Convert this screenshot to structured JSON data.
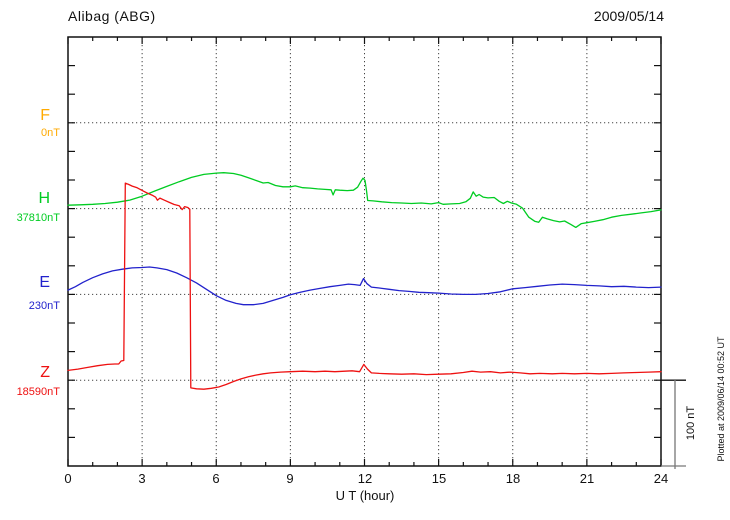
{
  "header": {
    "station": "Alibag (ABG)",
    "date": "2009/05/14"
  },
  "axes": {
    "x": {
      "label": "U T (hour)",
      "ticks": [
        "0",
        "3",
        "6",
        "9",
        "12",
        "15",
        "18",
        "21",
        "24"
      ]
    },
    "scale_bar": {
      "label": "100 nT"
    }
  },
  "footer_note": "Plotted at 2009/06/14 00:52 UT",
  "components": [
    {
      "id": "F",
      "label": "F",
      "baseline_label": "0nT",
      "color": "#FFAA00"
    },
    {
      "id": "H",
      "label": "H",
      "baseline_label": "37810nT",
      "color": "#00CC22"
    },
    {
      "id": "E",
      "label": "E",
      "baseline_label": "230nT",
      "color": "#2222CC"
    },
    {
      "id": "Z",
      "label": "Z",
      "baseline_label": "18590nT",
      "color": "#EE1111"
    }
  ],
  "chart_data": {
    "type": "line",
    "title": "Alibag (ABG) magnetogram",
    "subtitle": "2009/05/14",
    "xlabel": "U T (hour)",
    "x_range": [
      0,
      24
    ],
    "x_tick_interval_hours": 3,
    "grid": "dotted",
    "scale_nT_per_division": 100,
    "series": [
      {
        "name": "F",
        "base_value_nT": 0,
        "color": "#FFAA00",
        "points": []
      },
      {
        "name": "H",
        "base_value_nT": 37810,
        "color": "#00CC22",
        "points": [
          [
            0,
            4
          ],
          [
            0.5,
            4.5
          ],
          [
            1,
            5
          ],
          [
            1.5,
            6
          ],
          [
            2,
            7.5
          ],
          [
            2.5,
            10
          ],
          [
            3,
            14.5
          ],
          [
            3.5,
            20.5
          ],
          [
            4,
            26
          ],
          [
            4.5,
            31.5
          ],
          [
            5,
            36.5
          ],
          [
            5.5,
            40
          ],
          [
            6,
            41.5
          ],
          [
            6.3,
            42
          ],
          [
            6.7,
            41
          ],
          [
            7,
            39
          ],
          [
            7.3,
            36
          ],
          [
            7.6,
            33
          ],
          [
            7.9,
            30
          ],
          [
            8.1,
            30.5
          ],
          [
            8.4,
            27
          ],
          [
            8.7,
            25.5
          ],
          [
            9,
            25.5
          ],
          [
            9.2,
            26.5
          ],
          [
            9.5,
            24.5
          ],
          [
            9.8,
            24
          ],
          [
            10.1,
            23
          ],
          [
            10.4,
            22.5
          ],
          [
            10.65,
            22
          ],
          [
            10.73,
            16
          ],
          [
            10.82,
            22
          ],
          [
            11,
            21.5
          ],
          [
            11.3,
            21
          ],
          [
            11.55,
            21.5
          ],
          [
            11.72,
            25
          ],
          [
            11.86,
            32
          ],
          [
            11.94,
            35.5
          ],
          [
            12.02,
            33
          ],
          [
            12.08,
            21
          ],
          [
            12.13,
            9.5
          ],
          [
            12.35,
            9
          ],
          [
            12.7,
            8
          ],
          [
            13.1,
            7
          ],
          [
            13.5,
            6.5
          ],
          [
            13.9,
            6
          ],
          [
            14.3,
            6.5
          ],
          [
            14.7,
            5.5
          ],
          [
            15,
            7
          ],
          [
            15.18,
            5
          ],
          [
            15.5,
            5.5
          ],
          [
            15.85,
            6
          ],
          [
            16.1,
            8
          ],
          [
            16.28,
            12
          ],
          [
            16.4,
            19.5
          ],
          [
            16.52,
            14.5
          ],
          [
            16.64,
            16.5
          ],
          [
            16.8,
            13.5
          ],
          [
            17,
            12.5
          ],
          [
            17.25,
            13
          ],
          [
            17.45,
            8.5
          ],
          [
            17.62,
            6
          ],
          [
            17.78,
            8.5
          ],
          [
            17.95,
            6.5
          ],
          [
            18.15,
            5
          ],
          [
            18.4,
            0.5
          ],
          [
            18.65,
            -10
          ],
          [
            18.9,
            -15
          ],
          [
            19.05,
            -16
          ],
          [
            19.2,
            -10
          ],
          [
            19.4,
            -12
          ],
          [
            19.65,
            -14
          ],
          [
            19.9,
            -15.5
          ],
          [
            20.1,
            -14.5
          ],
          [
            20.35,
            -18.5
          ],
          [
            20.55,
            -22
          ],
          [
            20.78,
            -17.5
          ],
          [
            21,
            -16.5
          ],
          [
            21.3,
            -15
          ],
          [
            21.65,
            -13
          ],
          [
            22,
            -10
          ],
          [
            22.4,
            -8
          ],
          [
            22.8,
            -6.5
          ],
          [
            23.2,
            -5
          ],
          [
            23.6,
            -3.5
          ],
          [
            24,
            -1.5
          ]
        ]
      },
      {
        "name": "E",
        "base_value_nT": 230,
        "color": "#2222CC",
        "points": [
          [
            0,
            5
          ],
          [
            0.3,
            9
          ],
          [
            0.6,
            14
          ],
          [
            1,
            19.5
          ],
          [
            1.4,
            24
          ],
          [
            1.8,
            27.5
          ],
          [
            2.2,
            29.5
          ],
          [
            2.6,
            31
          ],
          [
            3,
            31.5
          ],
          [
            3.3,
            32
          ],
          [
            3.6,
            31
          ],
          [
            4,
            29
          ],
          [
            4.4,
            25
          ],
          [
            4.8,
            19.5
          ],
          [
            5.2,
            13.5
          ],
          [
            5.6,
            6
          ],
          [
            6,
            -1.5
          ],
          [
            6.4,
            -7
          ],
          [
            6.8,
            -10.5
          ],
          [
            7.1,
            -12
          ],
          [
            7.5,
            -12
          ],
          [
            7.9,
            -10.5
          ],
          [
            8.3,
            -7
          ],
          [
            8.7,
            -3.5
          ],
          [
            9,
            -0.5
          ],
          [
            9.4,
            2.5
          ],
          [
            9.8,
            5
          ],
          [
            10.2,
            7
          ],
          [
            10.6,
            9
          ],
          [
            11,
            10.5
          ],
          [
            11.35,
            12
          ],
          [
            11.6,
            11.5
          ],
          [
            11.82,
            10.5
          ],
          [
            11.96,
            18.5
          ],
          [
            12.1,
            12.5
          ],
          [
            12.28,
            8.5
          ],
          [
            12.6,
            7.5
          ],
          [
            13,
            6
          ],
          [
            13.4,
            4.5
          ],
          [
            13.8,
            3.5
          ],
          [
            14.2,
            2.5
          ],
          [
            14.6,
            2
          ],
          [
            15,
            1.5
          ],
          [
            15.5,
            0.5
          ],
          [
            16,
            0
          ],
          [
            16.5,
            0
          ],
          [
            17,
            1
          ],
          [
            17.5,
            3
          ],
          [
            18,
            6.5
          ],
          [
            18.5,
            8
          ],
          [
            19,
            9.5
          ],
          [
            19.5,
            11
          ],
          [
            20,
            12
          ],
          [
            20.5,
            11.5
          ],
          [
            21,
            10.5
          ],
          [
            21.5,
            10
          ],
          [
            22,
            9
          ],
          [
            22.5,
            9.5
          ],
          [
            23,
            8.5
          ],
          [
            23.5,
            8
          ],
          [
            24,
            8.5
          ]
        ]
      },
      {
        "name": "Z",
        "base_value_nT": 18590,
        "color": "#EE1111",
        "points": [
          [
            0,
            11.5
          ],
          [
            0.4,
            13
          ],
          [
            0.8,
            15
          ],
          [
            1.2,
            17
          ],
          [
            1.6,
            18.5
          ],
          [
            1.9,
            19
          ],
          [
            2.05,
            19
          ],
          [
            2.15,
            22.5
          ],
          [
            2.26,
            23
          ],
          [
            2.32,
            230.5
          ],
          [
            2.45,
            229
          ],
          [
            2.6,
            227
          ],
          [
            2.8,
            225
          ],
          [
            3,
            222
          ],
          [
            3.2,
            219
          ],
          [
            3.4,
            216.5
          ],
          [
            3.55,
            214
          ],
          [
            3.62,
            210.5
          ],
          [
            3.72,
            213
          ],
          [
            3.9,
            210.5
          ],
          [
            4.1,
            208
          ],
          [
            4.3,
            205.5
          ],
          [
            4.5,
            204
          ],
          [
            4.62,
            199.5
          ],
          [
            4.72,
            203
          ],
          [
            4.85,
            202
          ],
          [
            4.93,
            200
          ],
          [
            4.97,
            -9
          ],
          [
            5.2,
            -10
          ],
          [
            5.5,
            -10.5
          ],
          [
            5.8,
            -9.5
          ],
          [
            6.1,
            -8
          ],
          [
            6.4,
            -5
          ],
          [
            6.7,
            -1.5
          ],
          [
            7,
            1.5
          ],
          [
            7.3,
            4
          ],
          [
            7.6,
            6
          ],
          [
            7.9,
            7.5
          ],
          [
            8.2,
            8.5
          ],
          [
            8.6,
            9.5
          ],
          [
            9,
            10
          ],
          [
            9.5,
            10.5
          ],
          [
            10,
            10
          ],
          [
            10.4,
            10.5
          ],
          [
            10.8,
            10
          ],
          [
            11.2,
            10.5
          ],
          [
            11.5,
            11
          ],
          [
            11.8,
            10
          ],
          [
            11.97,
            18.5
          ],
          [
            12.12,
            13
          ],
          [
            12.28,
            8.5
          ],
          [
            12.6,
            8
          ],
          [
            13,
            7.5
          ],
          [
            13.5,
            7
          ],
          [
            14,
            7.5
          ],
          [
            14.5,
            6.5
          ],
          [
            15,
            7
          ],
          [
            15.5,
            7.5
          ],
          [
            16,
            9
          ],
          [
            16.35,
            10.5
          ],
          [
            16.7,
            9.5
          ],
          [
            17.1,
            10
          ],
          [
            17.5,
            8.5
          ],
          [
            17.9,
            9.5
          ],
          [
            18.3,
            8.5
          ],
          [
            18.7,
            7.5
          ],
          [
            19.1,
            8
          ],
          [
            19.6,
            7.5
          ],
          [
            20,
            8
          ],
          [
            20.5,
            7.5
          ],
          [
            21,
            8
          ],
          [
            21.5,
            7.5
          ],
          [
            22,
            8
          ],
          [
            22.5,
            8.5
          ],
          [
            23,
            9
          ],
          [
            23.5,
            9.5
          ],
          [
            24,
            10
          ]
        ]
      }
    ]
  }
}
